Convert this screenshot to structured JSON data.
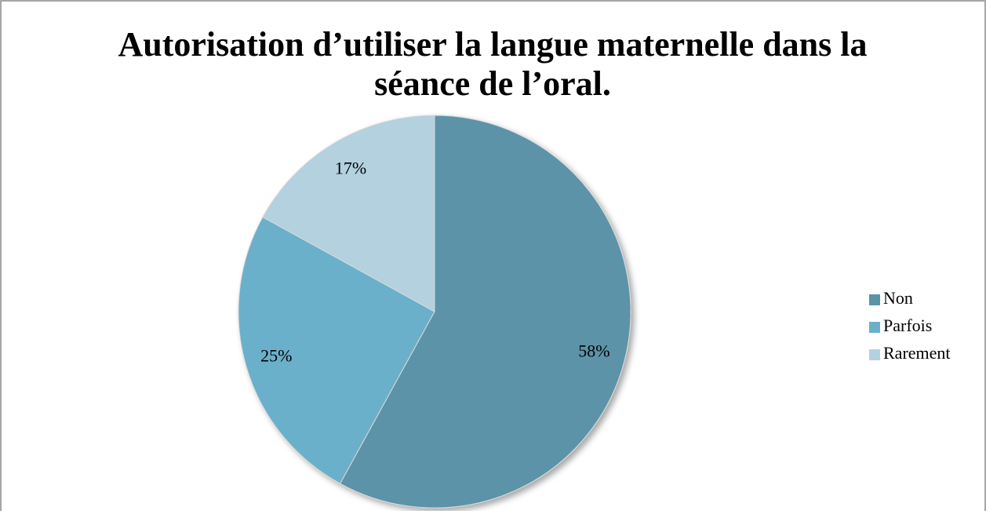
{
  "chart_data": {
    "type": "pie",
    "title": "Autorisation d’utiliser la langue maternelle dans la séance de l’oral.",
    "categories": [
      "Non",
      "Parfois",
      "Rarement"
    ],
    "values": [
      58,
      25,
      17
    ],
    "value_labels": [
      "58%",
      "25%",
      "17%"
    ],
    "colors": [
      "#5b93a8",
      "#6ab0ca",
      "#b3d1de"
    ],
    "legend": "right"
  }
}
